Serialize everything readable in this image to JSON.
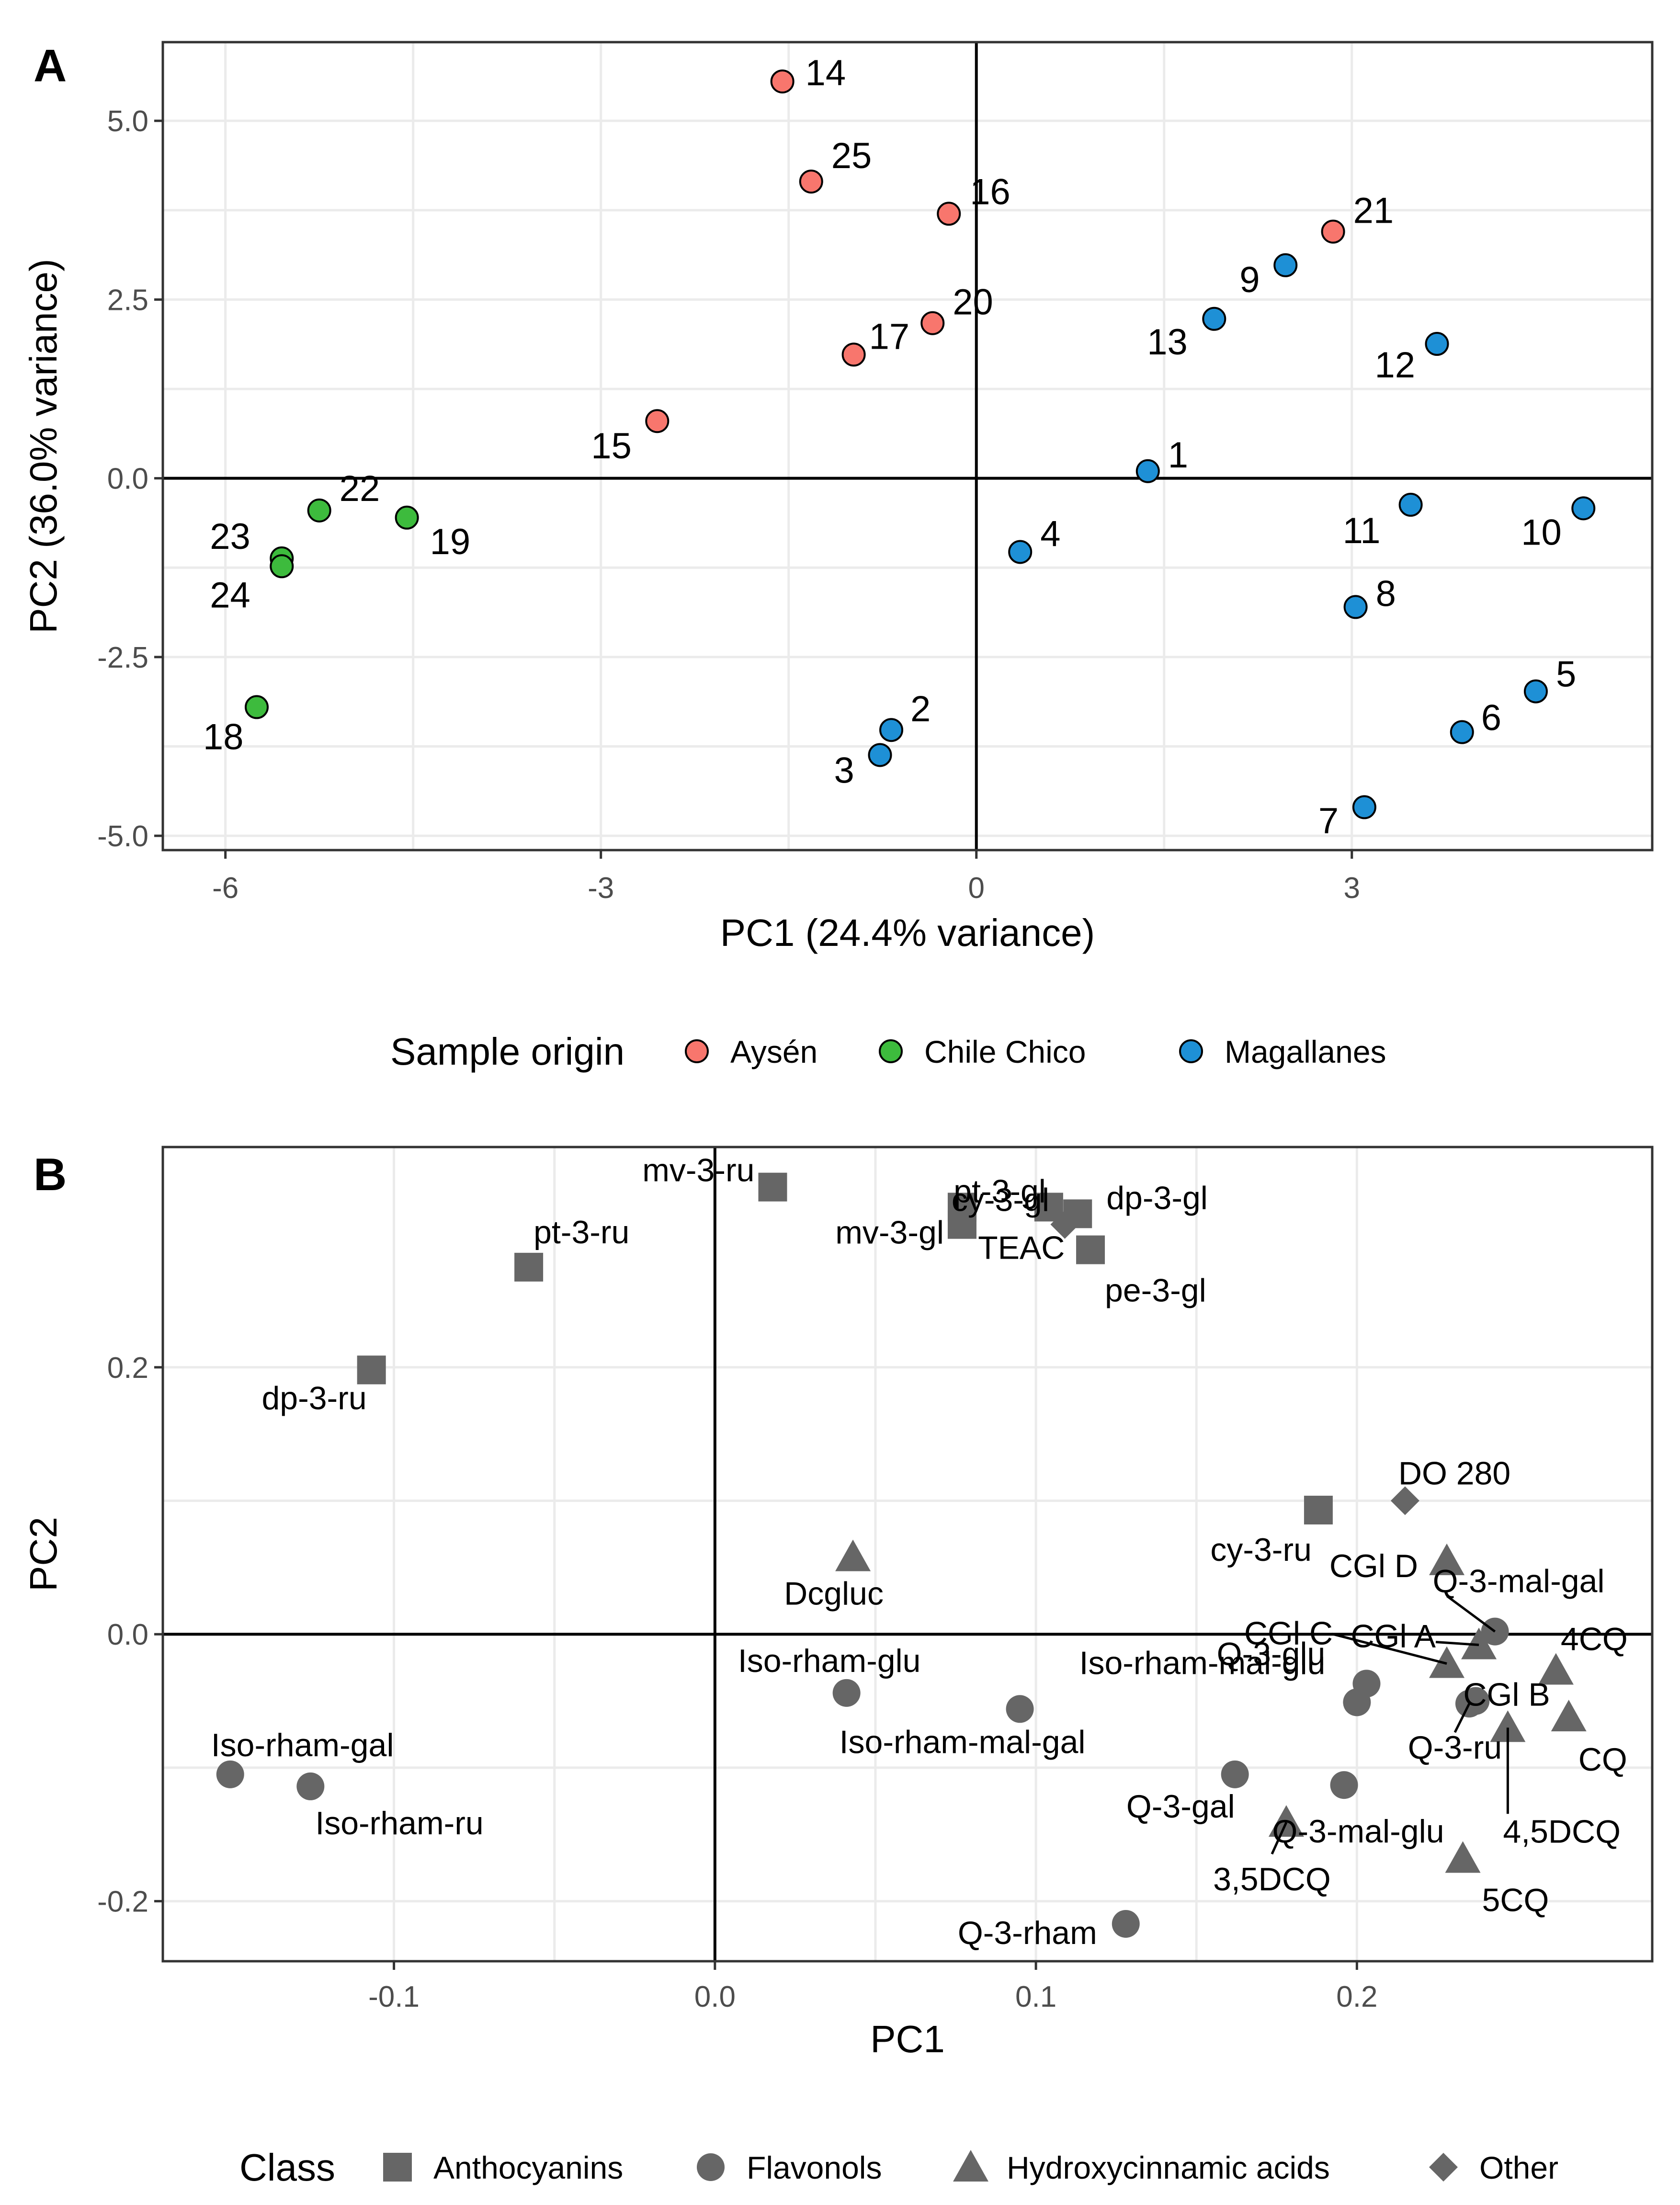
{
  "chart_data": [
    {
      "type": "scatter",
      "panel_label": "A",
      "xlabel": "PC1 (24.4% variance)",
      "ylabel": "PC2 (36.0% variance)",
      "xlim": [
        -6.5,
        5.4
      ],
      "ylim": [
        -5.2,
        6.1
      ],
      "x_ticks": [
        -6,
        -3,
        0,
        3
      ],
      "x_tick_labels": [
        "-6",
        "-3",
        "0",
        "3"
      ],
      "y_ticks": [
        5.0,
        2.5,
        0.0,
        -2.5,
        -5.0
      ],
      "y_tick_labels": [
        "5.0",
        "2.5",
        "0.0",
        "-2.5",
        "-5.0"
      ],
      "legend_title": "Sample origin",
      "groups": [
        {
          "name": "Aysén",
          "color": "#F8766D"
        },
        {
          "name": "Chile Chico",
          "color": "#3DBB3D"
        },
        {
          "name": "Magallanes",
          "color": "#1E90D6"
        }
      ],
      "points": [
        {
          "label": "14",
          "x": -1.55,
          "y": 5.55,
          "group": "Aysén"
        },
        {
          "label": "25",
          "x": -1.32,
          "y": 4.15,
          "group": "Aysén"
        },
        {
          "label": "16",
          "x": -0.22,
          "y": 3.7,
          "group": "Aysén"
        },
        {
          "label": "21",
          "x": 2.85,
          "y": 3.45,
          "group": "Aysén"
        },
        {
          "label": "20",
          "x": -0.35,
          "y": 2.17,
          "group": "Aysén"
        },
        {
          "label": "17",
          "x": -0.98,
          "y": 1.73,
          "group": "Aysén"
        },
        {
          "label": "15",
          "x": -2.55,
          "y": 0.8,
          "group": "Aysén"
        },
        {
          "label": "22",
          "x": -5.25,
          "y": -0.45,
          "group": "Chile Chico"
        },
        {
          "label": "19",
          "x": -4.55,
          "y": -0.55,
          "group": "Chile Chico"
        },
        {
          "label": "23",
          "x": -5.55,
          "y": -1.12,
          "group": "Chile Chico"
        },
        {
          "label": "24",
          "x": -5.55,
          "y": -1.23,
          "group": "Chile Chico"
        },
        {
          "label": "18",
          "x": -5.75,
          "y": -3.2,
          "group": "Chile Chico"
        },
        {
          "label": "9",
          "x": 2.47,
          "y": 2.98,
          "group": "Magallanes"
        },
        {
          "label": "13",
          "x": 1.9,
          "y": 2.23,
          "group": "Magallanes"
        },
        {
          "label": "12",
          "x": 3.68,
          "y": 1.88,
          "group": "Magallanes"
        },
        {
          "label": "1",
          "x": 1.37,
          "y": 0.1,
          "group": "Magallanes"
        },
        {
          "label": "11",
          "x": 3.47,
          "y": -0.37,
          "group": "Magallanes"
        },
        {
          "label": "10",
          "x": 4.85,
          "y": -0.42,
          "group": "Magallanes"
        },
        {
          "label": "4",
          "x": 0.35,
          "y": -1.03,
          "group": "Magallanes"
        },
        {
          "label": "8",
          "x": 3.03,
          "y": -1.8,
          "group": "Magallanes"
        },
        {
          "label": "5",
          "x": 4.47,
          "y": -2.98,
          "group": "Magallanes"
        },
        {
          "label": "6",
          "x": 3.88,
          "y": -3.55,
          "group": "Magallanes"
        },
        {
          "label": "2",
          "x": -0.68,
          "y": -3.52,
          "group": "Magallanes"
        },
        {
          "label": "3",
          "x": -0.77,
          "y": -3.87,
          "group": "Magallanes"
        },
        {
          "label": "7",
          "x": 3.1,
          "y": -4.6,
          "group": "Magallanes"
        }
      ]
    },
    {
      "type": "scatter",
      "panel_label": "B",
      "xlabel": "PC1",
      "ylabel": "PC2",
      "xlim": [
        -0.172,
        0.292
      ],
      "ylim": [
        -0.245,
        0.365
      ],
      "x_ticks": [
        -0.1,
        0.0,
        0.1,
        0.2
      ],
      "x_tick_labels": [
        "-0.1",
        "0.0",
        "0.1",
        "0.2"
      ],
      "y_ticks": [
        0.2,
        0.0,
        -0.2
      ],
      "y_tick_labels": [
        "0.2",
        "0.0",
        "-0.2"
      ],
      "legend_title": "Class",
      "marker_color": "#666666",
      "classes": [
        {
          "name": "Anthocyanins",
          "shape": "square"
        },
        {
          "name": "Flavonols",
          "shape": "circle"
        },
        {
          "name": "Hydroxycinnamic acids",
          "shape": "triangle"
        },
        {
          "name": "Other",
          "shape": "diamond"
        }
      ],
      "points": [
        {
          "label": "mv-3-ru",
          "x": 0.018,
          "y": 0.335,
          "class": "Anthocyanins"
        },
        {
          "label": "cy-3-gl",
          "x": 0.077,
          "y": 0.32,
          "class": "Anthocyanins"
        },
        {
          "label": "mv-3-gl",
          "x": 0.077,
          "y": 0.307,
          "class": "Anthocyanins"
        },
        {
          "label": "pt-3-gl",
          "x": 0.104,
          "y": 0.32,
          "class": "Anthocyanins"
        },
        {
          "label": "dp-3-gl",
          "x": 0.113,
          "y": 0.315,
          "class": "Anthocyanins"
        },
        {
          "label": "TEAC",
          "x": 0.109,
          "y": 0.307,
          "class": "Other"
        },
        {
          "label": "pe-3-gl",
          "x": 0.117,
          "y": 0.288,
          "class": "Anthocyanins"
        },
        {
          "label": "pt-3-ru",
          "x": -0.058,
          "y": 0.275,
          "class": "Anthocyanins"
        },
        {
          "label": "dp-3-ru",
          "x": -0.107,
          "y": 0.198,
          "class": "Anthocyanins"
        },
        {
          "label": "DO 280",
          "x": 0.215,
          "y": 0.1,
          "class": "Other"
        },
        {
          "label": "cy-3-ru",
          "x": 0.188,
          "y": 0.093,
          "class": "Anthocyanins"
        },
        {
          "label": "CGl D",
          "x": 0.228,
          "y": 0.055,
          "class": "Hydroxycinnamic acids"
        },
        {
          "label": "Dcgluc",
          "x": 0.043,
          "y": 0.058,
          "class": "Hydroxycinnamic acids"
        },
        {
          "label": "Q-3-mal-gal",
          "x": 0.243,
          "y": 0.002,
          "class": "Flavonols"
        },
        {
          "label": "CGl A",
          "x": 0.238,
          "y": -0.008,
          "class": "Hydroxycinnamic acids"
        },
        {
          "label": "CGl C",
          "x": 0.228,
          "y": -0.022,
          "class": "Hydroxycinnamic acids"
        },
        {
          "label": "4CQ",
          "x": 0.262,
          "y": -0.027,
          "class": "Hydroxycinnamic acids"
        },
        {
          "label": "CGl B",
          "x": 0.237,
          "y": -0.05,
          "class": "Flavonols"
        },
        {
          "label": "Iso-rham-glu",
          "x": 0.041,
          "y": -0.044,
          "class": "Flavonols"
        },
        {
          "label": "Iso-rham-mal-glu",
          "x": 0.203,
          "y": -0.037,
          "class": "Flavonols"
        },
        {
          "label": "Iso-rham-mal-gal",
          "x": 0.095,
          "y": -0.056,
          "class": "Flavonols"
        },
        {
          "label": "Q-3-glu",
          "x": 0.2,
          "y": -0.051,
          "class": "Flavonols"
        },
        {
          "label": "Q-3-ru",
          "x": 0.235,
          "y": -0.052,
          "class": "Flavonols"
        },
        {
          "label": "CQ",
          "x": 0.266,
          "y": -0.062,
          "class": "Hydroxycinnamic acids"
        },
        {
          "label": "4,5DCQ",
          "x": 0.247,
          "y": -0.07,
          "class": "Hydroxycinnamic acids"
        },
        {
          "label": "Q-3-gal",
          "x": 0.162,
          "y": -0.105,
          "class": "Flavonols"
        },
        {
          "label": "Q-3-mal-glu",
          "x": 0.196,
          "y": -0.113,
          "class": "Flavonols"
        },
        {
          "label": "3,5DCQ",
          "x": 0.178,
          "y": -0.141,
          "class": "Hydroxycinnamic acids"
        },
        {
          "label": "5CQ",
          "x": 0.233,
          "y": -0.168,
          "class": "Hydroxycinnamic acids"
        },
        {
          "label": "Q-3-rham",
          "x": 0.128,
          "y": -0.217,
          "class": "Flavonols"
        },
        {
          "label": "Iso-rham-gal",
          "x": -0.151,
          "y": -0.105,
          "class": "Flavonols"
        },
        {
          "label": "Iso-rham-ru",
          "x": -0.126,
          "y": -0.114,
          "class": "Flavonols"
        }
      ]
    }
  ]
}
